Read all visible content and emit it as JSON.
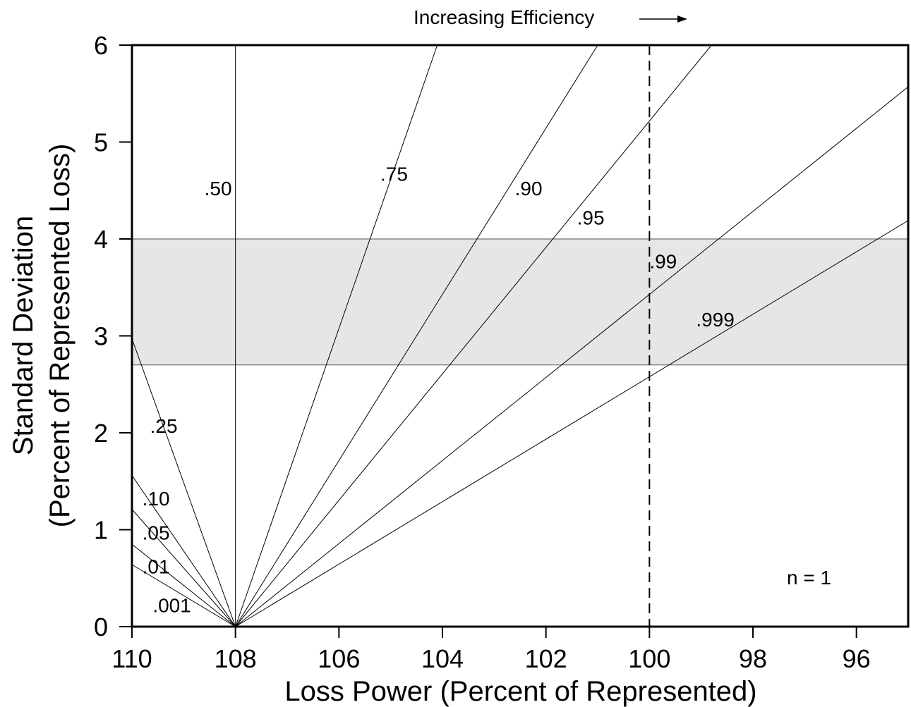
{
  "chart_data": {
    "type": "line",
    "title": "",
    "xlabel": "Loss Power (Percent of Represented)",
    "ylabel_line1": "Standard Deviation",
    "ylabel_line2": "(Percent of Represented Loss)",
    "xlim": [
      110,
      95
    ],
    "ylim": [
      0,
      6
    ],
    "x_reversed": true,
    "x_ticks": [
      110,
      108,
      106,
      104,
      102,
      100,
      98,
      96
    ],
    "y_ticks": [
      0,
      1,
      2,
      3,
      4,
      5,
      6
    ],
    "grid": false,
    "shaded_band": {
      "y_from": 2.7,
      "y_to": 4.0,
      "color": "#e6e6e6"
    },
    "vertical_line_at_108": 108,
    "dashed_vertical_line": 100,
    "annotations": {
      "top_arrow_text": "Increasing Efficiency",
      "sample_size": "n = 1"
    },
    "series": [
      {
        "name": ".001",
        "points": [
          [
            108,
            0
          ],
          [
            110,
            0.64
          ]
        ]
      },
      {
        "name": ".01",
        "points": [
          [
            108,
            0
          ],
          [
            110,
            0.85
          ]
        ]
      },
      {
        "name": ".05",
        "points": [
          [
            108,
            0
          ],
          [
            110,
            1.21
          ]
        ]
      },
      {
        "name": ".10",
        "points": [
          [
            108,
            0
          ],
          [
            110,
            1.56
          ]
        ]
      },
      {
        "name": ".25",
        "points": [
          [
            108,
            0
          ],
          [
            110,
            2.97
          ]
        ]
      },
      {
        "name": ".50",
        "points": [
          [
            108,
            0
          ],
          [
            108,
            6
          ]
        ]
      },
      {
        "name": ".75",
        "points": [
          [
            108,
            0
          ],
          [
            104.1,
            6
          ]
        ]
      },
      {
        "name": ".90",
        "points": [
          [
            108,
            0
          ],
          [
            101.0,
            6
          ]
        ]
      },
      {
        "name": ".95",
        "points": [
          [
            108,
            0
          ],
          [
            98.8,
            6
          ]
        ]
      },
      {
        "name": ".99",
        "points": [
          [
            108,
            0
          ],
          [
            95,
            5.57
          ]
        ]
      },
      {
        "name": ".999",
        "points": [
          [
            108,
            0
          ],
          [
            95,
            4.19
          ]
        ]
      }
    ],
    "series_labels": [
      {
        "text": ".001",
        "x": 109.6,
        "y": 0.15
      },
      {
        "text": ".01",
        "x": 109.8,
        "y": 0.55
      },
      {
        "text": ".05",
        "x": 109.8,
        "y": 0.9
      },
      {
        "text": ".10",
        "x": 109.8,
        "y": 1.25
      },
      {
        "text": ".25",
        "x": 109.65,
        "y": 2.0
      },
      {
        "text": ".50",
        "x": 108.6,
        "y": 4.45
      },
      {
        "text": ".75",
        "x": 105.2,
        "y": 4.6
      },
      {
        "text": ".90",
        "x": 102.6,
        "y": 4.45
      },
      {
        "text": ".95",
        "x": 101.4,
        "y": 4.15
      },
      {
        "text": ".99",
        "x": 100.0,
        "y": 3.7
      },
      {
        "text": ".999",
        "x": 99.1,
        "y": 3.1
      }
    ]
  }
}
